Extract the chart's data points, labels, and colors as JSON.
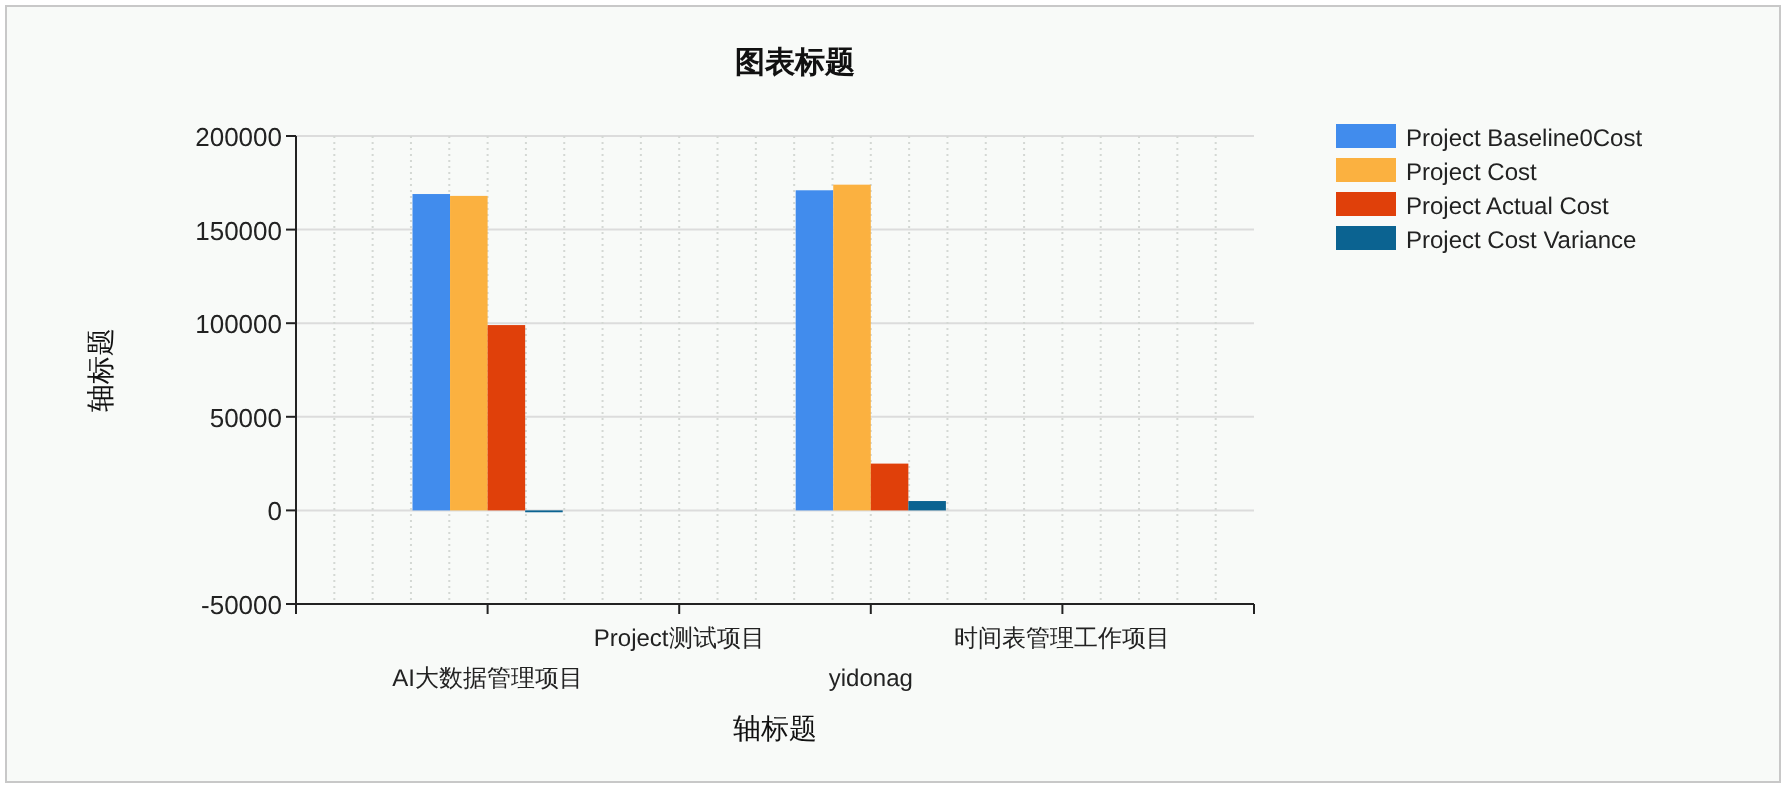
{
  "chart_data": {
    "type": "bar",
    "title": "图表标题",
    "xlabel": "轴标题",
    "ylabel": "轴标题",
    "categories": [
      "AI大数据管理项目",
      "Project测试项目",
      "yidonag",
      "时间表管理工作项目"
    ],
    "series": [
      {
        "name": "Project Baseline0Cost",
        "color": "#418ced",
        "values": [
          169000,
          0,
          171000,
          0
        ]
      },
      {
        "name": "Project Cost",
        "color": "#fbb140",
        "values": [
          168000,
          0,
          174000,
          0
        ]
      },
      {
        "name": "Project Actual Cost",
        "color": "#e0400a",
        "values": [
          99000,
          0,
          25000,
          0
        ]
      },
      {
        "name": "Project Cost Variance",
        "color": "#0b6391",
        "values": [
          -1000,
          0,
          5000,
          0
        ]
      }
    ],
    "ylim": [
      -50000,
      200000
    ],
    "yticks": [
      -50000,
      0,
      50000,
      100000,
      150000,
      200000
    ],
    "grid": true,
    "legend": "right"
  }
}
